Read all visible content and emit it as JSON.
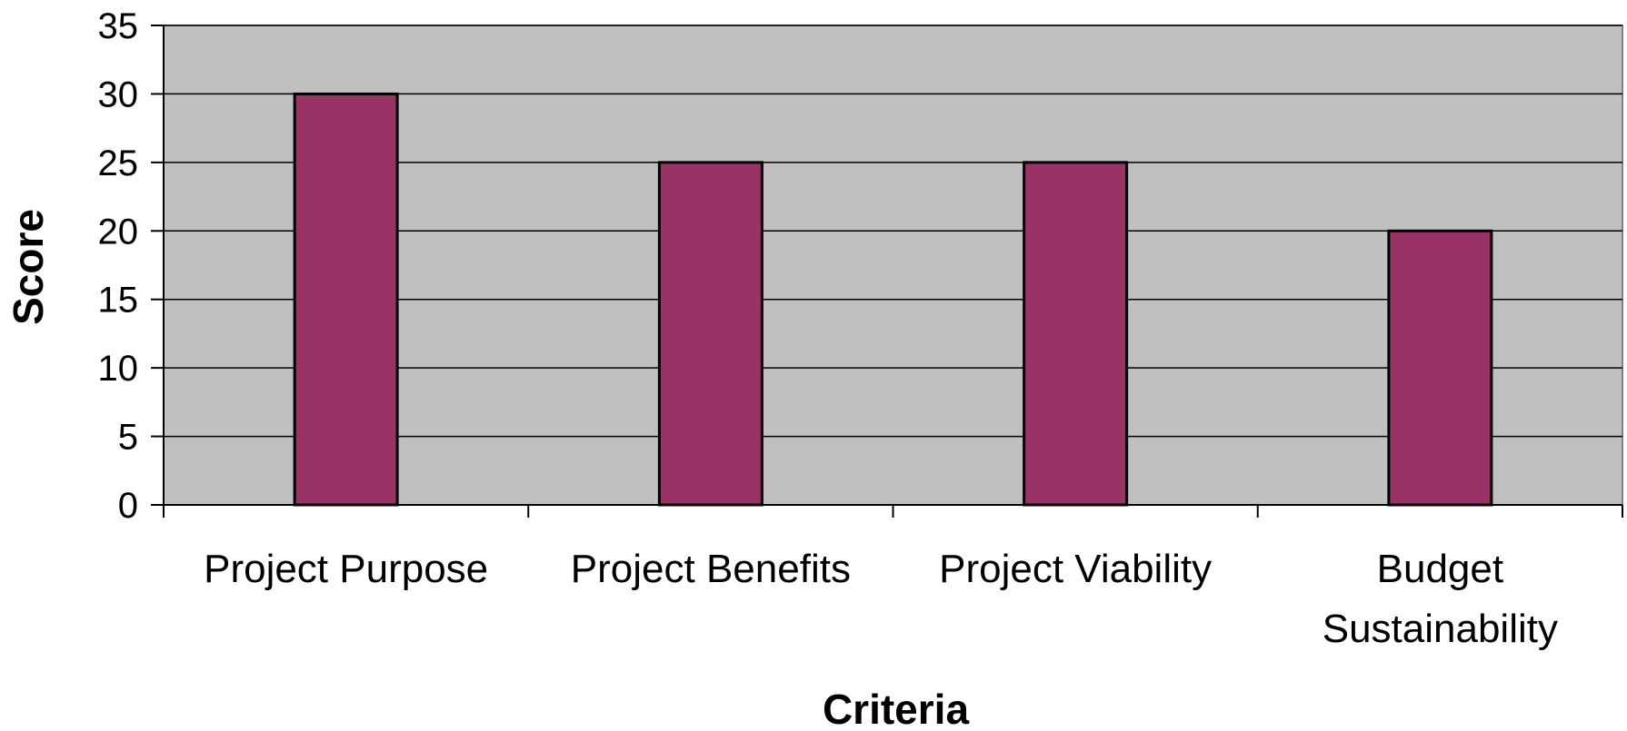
{
  "chart_data": {
    "type": "bar",
    "categories": [
      "Project Purpose",
      "Project Benefits",
      "Project Viability",
      "Budget Sustainability"
    ],
    "category_lines": [
      [
        "Project Purpose"
      ],
      [
        "Project Benefits"
      ],
      [
        "Project Viability"
      ],
      [
        "Budget",
        "Sustainability"
      ]
    ],
    "values": [
      30,
      25,
      25,
      20
    ],
    "xlabel": "Criteria",
    "ylabel": "Score",
    "ylim": [
      0,
      35
    ],
    "yticks": [
      0,
      5,
      10,
      15,
      20,
      25,
      30,
      35
    ],
    "grid": true,
    "legend": "none",
    "colors": {
      "bar": "#993366",
      "bar_outline": "#000000",
      "plot_background": "#c0c0c0",
      "gridline": "#000000"
    }
  }
}
